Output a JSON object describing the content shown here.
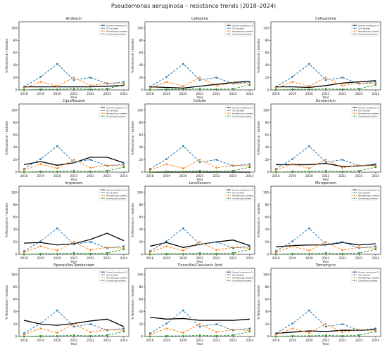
{
  "figure_title": "Pseudomonas aeruginosa – resistance trends (2018–2024)",
  "colors": {
    "overall": "#000000",
    "icu": "#1f77b4",
    "hematology": "#ff7f0e",
    "cardiology": "#2ca02c"
  },
  "chart_data": [
    {
      "type": "line",
      "title": "Amikacin",
      "xlabel": "Year",
      "ylabel": "% Resistance / Isolates",
      "x": [
        2018,
        2019,
        2020,
        2021,
        2022,
        2023,
        2024
      ],
      "ylim": [
        0,
        110
      ],
      "yticks": [
        0,
        20,
        40,
        60,
        80,
        100
      ],
      "legend": "top-right",
      "series": [
        {
          "name": "Overall resistance %",
          "values": [
            5,
            5,
            5,
            5,
            5,
            6,
            7
          ]
        },
        {
          "name": "ICU isolates",
          "values": [
            5,
            21,
            42,
            16,
            20,
            10,
            13
          ]
        },
        {
          "name": "Hematology isolates",
          "values": [
            3,
            13,
            6,
            20,
            7,
            11,
            10
          ]
        },
        {
          "name": "Cardiology isolates",
          "values": [
            0,
            1,
            1,
            2,
            1,
            2,
            8
          ]
        }
      ]
    },
    {
      "type": "line",
      "title": "Cefepime",
      "xlabel": "Year",
      "ylabel": "% Resistance / Isolates",
      "x": [
        2018,
        2019,
        2020,
        2021,
        2022,
        2023,
        2024
      ],
      "ylim": [
        0,
        110
      ],
      "yticks": [
        0,
        20,
        40,
        60,
        80,
        100
      ],
      "legend": "top-right",
      "series": [
        {
          "name": "Overall resistance %",
          "values": [
            5,
            4,
            3,
            6,
            9,
            12,
            14
          ]
        },
        {
          "name": "ICU isolates",
          "values": [
            5,
            21,
            42,
            16,
            20,
            10,
            13
          ]
        },
        {
          "name": "Hematology isolates",
          "values": [
            3,
            13,
            6,
            20,
            7,
            11,
            10
          ]
        },
        {
          "name": "Cardiology isolates",
          "values": [
            0,
            1,
            1,
            2,
            1,
            2,
            8
          ]
        }
      ]
    },
    {
      "type": "line",
      "title": "Ceftazidime",
      "xlabel": "Year",
      "ylabel": "% Resistance / Isolates",
      "x": [
        2018,
        2019,
        2020,
        2021,
        2022,
        2023,
        2024
      ],
      "ylim": [
        0,
        110
      ],
      "yticks": [
        0,
        20,
        40,
        60,
        80,
        100
      ],
      "legend": "top-right",
      "series": [
        {
          "name": "Overall resistance %",
          "values": [
            5,
            5,
            4,
            7,
            11,
            13,
            15
          ]
        },
        {
          "name": "ICU isolates",
          "values": [
            5,
            21,
            42,
            16,
            20,
            10,
            13
          ]
        },
        {
          "name": "Hematology isolates",
          "values": [
            3,
            13,
            6,
            20,
            7,
            11,
            10
          ]
        },
        {
          "name": "Cardiology isolates",
          "values": [
            0,
            1,
            1,
            2,
            1,
            2,
            8
          ]
        }
      ]
    },
    {
      "type": "line",
      "title": "Ciprofloxacin",
      "xlabel": "Year",
      "ylabel": "% Resistance / Isolates",
      "x": [
        2018,
        2019,
        2020,
        2021,
        2022,
        2023,
        2024
      ],
      "ylim": [
        0,
        110
      ],
      "yticks": [
        0,
        20,
        40,
        60,
        80,
        100
      ],
      "legend": "top-right",
      "series": [
        {
          "name": "Overall resistance %",
          "values": [
            12,
            17,
            11,
            15,
            24,
            24,
            15
          ]
        },
        {
          "name": "ICU isolates",
          "values": [
            5,
            21,
            42,
            16,
            20,
            10,
            13
          ]
        },
        {
          "name": "Hematology isolates",
          "values": [
            3,
            13,
            6,
            20,
            7,
            11,
            10
          ]
        },
        {
          "name": "Cardiology isolates",
          "values": [
            0,
            1,
            1,
            2,
            1,
            2,
            8
          ]
        }
      ]
    },
    {
      "type": "line",
      "title": "Colistin",
      "xlabel": "Year",
      "ylabel": "% Resistance / Isolates",
      "x": [
        2018,
        2019,
        2020,
        2021,
        2022,
        2023,
        2024
      ],
      "ylim": [
        0,
        110
      ],
      "yticks": [
        0,
        20,
        40,
        60,
        80,
        100
      ],
      "legend": "top-right",
      "series": [
        {
          "name": "Overall resistance %",
          "values": [
            0,
            0,
            0,
            0,
            0,
            0,
            0
          ]
        },
        {
          "name": "ICU isolates",
          "values": [
            5,
            21,
            42,
            16,
            20,
            10,
            13
          ]
        },
        {
          "name": "Hematology isolates",
          "values": [
            3,
            13,
            6,
            20,
            7,
            11,
            10
          ]
        },
        {
          "name": "Cardiology isolates",
          "values": [
            0,
            1,
            1,
            2,
            1,
            2,
            8
          ]
        }
      ]
    },
    {
      "type": "line",
      "title": "Gentamicin",
      "xlabel": "Year",
      "ylabel": "% Resistance / Isolates",
      "x": [
        2018,
        2019,
        2020,
        2021,
        2022,
        2023,
        2024
      ],
      "ylim": [
        0,
        110
      ],
      "yticks": [
        0,
        20,
        40,
        60,
        80,
        100
      ],
      "legend": "top-right",
      "series": [
        {
          "name": "Overall resistance %",
          "values": [
            12,
            12,
            12,
            14,
            9,
            10,
            12
          ]
        },
        {
          "name": "ICU isolates",
          "values": [
            5,
            21,
            42,
            16,
            20,
            10,
            13
          ]
        },
        {
          "name": "Hematology isolates",
          "values": [
            3,
            13,
            6,
            20,
            7,
            11,
            10
          ]
        },
        {
          "name": "Cardiology isolates",
          "values": [
            0,
            1,
            1,
            2,
            1,
            2,
            8
          ]
        }
      ]
    },
    {
      "type": "line",
      "title": "Imipenem",
      "xlabel": "Year",
      "ylabel": "% Resistance / Isolates",
      "x": [
        2018,
        2019,
        2020,
        2021,
        2022,
        2023,
        2024
      ],
      "ylim": [
        0,
        110
      ],
      "yticks": [
        0,
        20,
        40,
        60,
        80,
        100
      ],
      "legend": "top-right",
      "series": [
        {
          "name": "Overall resistance %",
          "values": [
            18,
            19,
            15,
            17,
            24,
            34,
            22
          ]
        },
        {
          "name": "ICU isolates",
          "values": [
            5,
            21,
            42,
            16,
            20,
            10,
            13
          ]
        },
        {
          "name": "Hematology isolates",
          "values": [
            3,
            13,
            6,
            20,
            7,
            11,
            10
          ]
        },
        {
          "name": "Cardiology isolates",
          "values": [
            0,
            1,
            1,
            2,
            1,
            2,
            8
          ]
        }
      ]
    },
    {
      "type": "line",
      "title": "Levofloxacin",
      "xlabel": "Year",
      "ylabel": "% Resistance / Isolates",
      "x": [
        2018,
        2019,
        2020,
        2021,
        2022,
        2023,
        2024
      ],
      "ylim": [
        0,
        110
      ],
      "yticks": [
        0,
        20,
        40,
        60,
        80,
        100
      ],
      "legend": "top-right",
      "series": [
        {
          "name": "Overall resistance %",
          "values": [
            13,
            19,
            11,
            16,
            20,
            23,
            14
          ]
        },
        {
          "name": "ICU isolates",
          "values": [
            5,
            21,
            42,
            16,
            20,
            10,
            13
          ]
        },
        {
          "name": "Hematology isolates",
          "values": [
            3,
            13,
            6,
            20,
            7,
            11,
            10
          ]
        },
        {
          "name": "Cardiology isolates",
          "values": [
            0,
            1,
            1,
            2,
            1,
            2,
            8
          ]
        }
      ]
    },
    {
      "type": "line",
      "title": "Meropenem",
      "xlabel": "Year",
      "ylabel": "% Resistance / Isolates",
      "x": [
        2018,
        2019,
        2020,
        2021,
        2022,
        2023,
        2024
      ],
      "ylim": [
        0,
        110
      ],
      "yticks": [
        0,
        20,
        40,
        60,
        80,
        100
      ],
      "legend": "top-right",
      "series": [
        {
          "name": "Overall resistance %",
          "values": [
            12,
            14,
            15,
            15,
            19,
            15,
            17
          ]
        },
        {
          "name": "ICU isolates",
          "values": [
            5,
            21,
            42,
            16,
            20,
            10,
            13
          ]
        },
        {
          "name": "Hematology isolates",
          "values": [
            3,
            13,
            6,
            20,
            7,
            11,
            10
          ]
        },
        {
          "name": "Cardiology isolates",
          "values": [
            0,
            1,
            1,
            2,
            1,
            2,
            8
          ]
        }
      ]
    },
    {
      "type": "line",
      "title": "Piperacillin/Tazobactam",
      "xlabel": "Year",
      "ylabel": "% Resistance / Isolates",
      "x": [
        2018,
        2019,
        2020,
        2021,
        2022,
        2023,
        2024
      ],
      "ylim": [
        0,
        110
      ],
      "yticks": [
        0,
        20,
        40,
        60,
        80,
        100
      ],
      "legend": "top-right",
      "series": [
        {
          "name": "Overall resistance %",
          "values": [
            26,
            20,
            18,
            21,
            25,
            28,
            16
          ]
        },
        {
          "name": "ICU isolates",
          "values": [
            5,
            21,
            42,
            16,
            20,
            10,
            13
          ]
        },
        {
          "name": "Hematology isolates",
          "values": [
            3,
            13,
            6,
            20,
            7,
            11,
            10
          ]
        },
        {
          "name": "Cardiology isolates",
          "values": [
            0,
            1,
            1,
            2,
            1,
            2,
            8
          ]
        }
      ]
    },
    {
      "type": "line",
      "title": "Ticarcillin/Clavulanic Acid",
      "xlabel": "Year",
      "ylabel": "% Resistance / Isolates",
      "x": [
        2018,
        2019,
        2020,
        2021,
        2022,
        2023,
        2024
      ],
      "ylim": [
        0,
        110
      ],
      "yticks": [
        0,
        20,
        40,
        60,
        80,
        100
      ],
      "legend": "top-right",
      "series": [
        {
          "name": "Overall resistance %",
          "values": [
            31,
            28,
            29,
            26,
            26,
            26,
            28
          ]
        },
        {
          "name": "ICU isolates",
          "values": [
            5,
            21,
            42,
            16,
            20,
            10,
            13
          ]
        },
        {
          "name": "Hematology isolates",
          "values": [
            3,
            13,
            6,
            20,
            7,
            11,
            10
          ]
        },
        {
          "name": "Cardiology isolates",
          "values": [
            0,
            1,
            1,
            2,
            1,
            2,
            8
          ]
        }
      ]
    },
    {
      "type": "line",
      "title": "Tobramycin",
      "xlabel": "Year",
      "ylabel": "% Resistance / Isolates",
      "x": [
        2018,
        2019,
        2020,
        2021,
        2022,
        2023,
        2024
      ],
      "ylim": [
        0,
        110
      ],
      "yticks": [
        0,
        20,
        40,
        60,
        80,
        100
      ],
      "legend": "top-right",
      "series": [
        {
          "name": "Overall resistance %",
          "values": [
            5,
            7,
            9,
            8,
            10,
            10,
            11
          ]
        },
        {
          "name": "ICU isolates",
          "values": [
            5,
            21,
            42,
            16,
            20,
            10,
            13
          ]
        },
        {
          "name": "Hematology isolates",
          "values": [
            3,
            13,
            6,
            20,
            7,
            11,
            10
          ]
        },
        {
          "name": "Cardiology isolates",
          "values": [
            0,
            1,
            1,
            2,
            1,
            2,
            8
          ]
        }
      ]
    }
  ]
}
